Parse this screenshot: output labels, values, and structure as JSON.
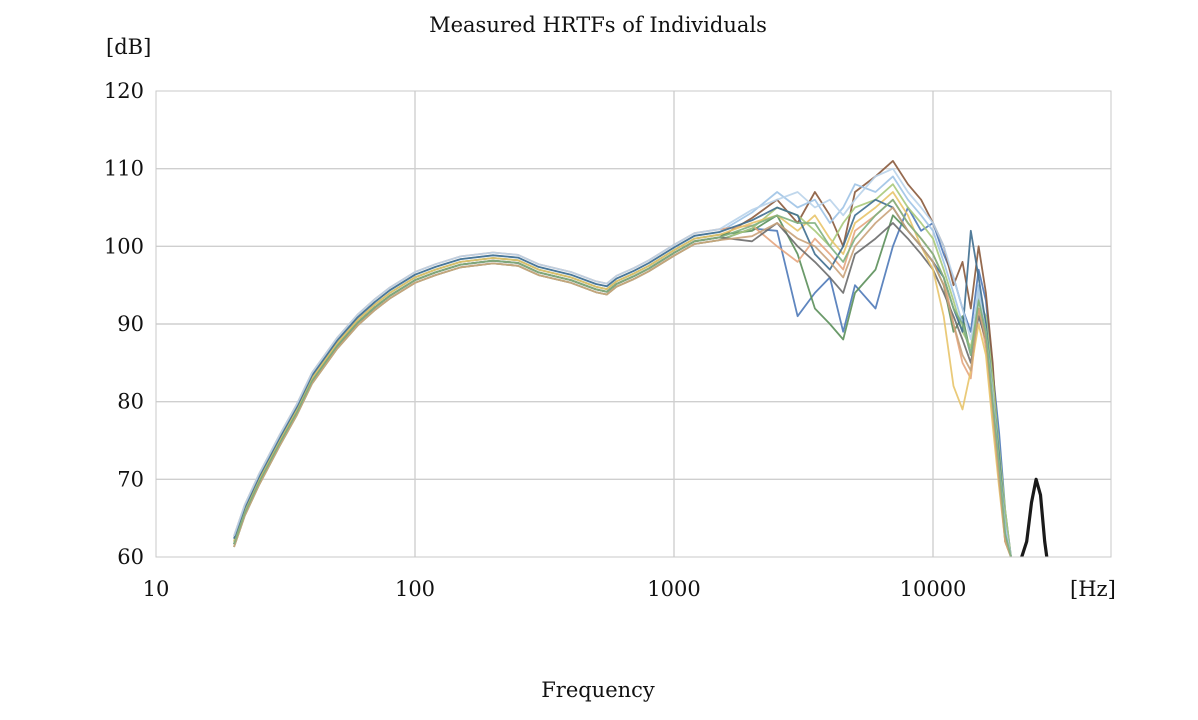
{
  "chart_data": {
    "type": "line",
    "title": "Measured HRTFs of Individuals",
    "ylabel": "[dB]",
    "xunit": "[Hz]",
    "xlabel": "Frequency",
    "x_scale": "log",
    "xlim": [
      10,
      35000
    ],
    "ylim": [
      60,
      120
    ],
    "x_ticks": [
      10,
      100,
      1000,
      10000
    ],
    "x_tick_labels": [
      "10",
      "100",
      "1000",
      "10000"
    ],
    "y_ticks": [
      60,
      70,
      80,
      90,
      100,
      110,
      120
    ],
    "y_tick_labels": [
      "60",
      "70",
      "80",
      "90",
      "100",
      "110",
      "120"
    ],
    "grid": true,
    "legend": "none",
    "base_curve": {
      "x": [
        20,
        22,
        25,
        30,
        35,
        40,
        50,
        60,
        70,
        80,
        100,
        120,
        150,
        200,
        250,
        300,
        400,
        500,
        550,
        600,
        700,
        800,
        1000,
        1200,
        1500,
        2000
      ],
      "y": [
        62,
        66,
        70,
        75,
        79,
        83,
        87.5,
        90.5,
        92.5,
        94,
        96,
        97,
        98,
        98.5,
        98.2,
        97,
        96,
        94.8,
        94.5,
        95.5,
        96.5,
        97.5,
        99.5,
        101,
        101.5,
        103
      ]
    },
    "series": [
      {
        "color": "#4e79b8",
        "x": [
          2000,
          2500,
          3000,
          3500,
          4000,
          4500,
          5000,
          6000,
          7000,
          8000,
          9000,
          10000,
          11000,
          12000,
          13000,
          14000,
          15000,
          16000,
          17000,
          18000,
          19000,
          20000
        ],
        "y": [
          103,
          102,
          91,
          94,
          96,
          89,
          95,
          92,
          100,
          105,
          102,
          103,
          99,
          96,
          92,
          89,
          97,
          93,
          84,
          76,
          66,
          60
        ]
      },
      {
        "color": "#8a5a3c",
        "x": [
          2000,
          2500,
          3000,
          3500,
          4000,
          4500,
          5000,
          6000,
          7000,
          8000,
          9000,
          10000,
          11000,
          12000,
          13000,
          14000,
          15000,
          16000,
          17000,
          18000,
          19000,
          20000
        ],
        "y": [
          104,
          106,
          103,
          107,
          104,
          100,
          107,
          109,
          111,
          108,
          106,
          103,
          100,
          95,
          98,
          92,
          100,
          94,
          85,
          72,
          62,
          60
        ]
      },
      {
        "color": "#5b8f5a",
        "x": [
          2000,
          2500,
          3000,
          3500,
          4000,
          4500,
          5000,
          6000,
          7000,
          8000,
          9000,
          10000,
          11000,
          12000,
          13000,
          14000,
          15000,
          16000,
          17000,
          18000,
          19000,
          20000
        ],
        "y": [
          102,
          104,
          99,
          92,
          90,
          88,
          94,
          97,
          104,
          102,
          100,
          98,
          95,
          89,
          91,
          86,
          94,
          88,
          80,
          71,
          64,
          60
        ]
      },
      {
        "color": "#9ec3e6",
        "x": [
          2000,
          2500,
          3000,
          3500,
          4000,
          4500,
          5000,
          6000,
          7000,
          8000,
          9000,
          10000,
          11000,
          12000,
          13000,
          14000,
          15000,
          16000,
          17000,
          18000,
          19000,
          20000
        ],
        "y": [
          104,
          107,
          105,
          106,
          103,
          105,
          108,
          107,
          109,
          106,
          104,
          102,
          98,
          94,
          90,
          86,
          95,
          90,
          82,
          73,
          65,
          60
        ]
      },
      {
        "color": "#e6a57e",
        "x": [
          2000,
          2500,
          3000,
          3500,
          4000,
          4500,
          5000,
          6000,
          7000,
          8000,
          9000,
          10000,
          11000,
          12000,
          13000,
          14000,
          15000,
          16000,
          17000,
          18000,
          19000,
          20000
        ],
        "y": [
          102,
          100,
          98,
          101,
          99,
          97,
          102,
          104,
          106,
          103,
          101,
          99,
          96,
          90,
          85,
          83,
          92,
          87,
          78,
          70,
          62,
          60
        ]
      },
      {
        "color": "#a9c97a",
        "x": [
          2000,
          2500,
          3000,
          3500,
          4000,
          4500,
          5000,
          6000,
          7000,
          8000,
          9000,
          10000,
          11000,
          12000,
          13000,
          14000,
          15000,
          16000,
          17000,
          18000,
          19000,
          20000
        ],
        "y": [
          103,
          105,
          104,
          102,
          100,
          103,
          105,
          106,
          108,
          105,
          103,
          101,
          97,
          93,
          89,
          87,
          93,
          91,
          83,
          74,
          66,
          60
        ]
      },
      {
        "color": "#6b6b6b",
        "x": [
          2000,
          2500,
          3000,
          3500,
          4000,
          4500,
          5000,
          6000,
          7000,
          8000,
          9000,
          10000,
          11000,
          12000,
          13000,
          14000,
          15000,
          16000,
          17000,
          18000,
          19000,
          20000
        ],
        "y": [
          101,
          103,
          100,
          98,
          96,
          94,
          99,
          101,
          103,
          101,
          99,
          97,
          94,
          91,
          88,
          85,
          91,
          88,
          80,
          72,
          63,
          60
        ]
      },
      {
        "color": "#e8c46a",
        "x": [
          2000,
          2500,
          3000,
          3500,
          4000,
          4500,
          5000,
          6000,
          7000,
          8000,
          9000,
          10000,
          11000,
          12000,
          13000,
          14000,
          15000,
          16000,
          17000,
          18000,
          19000,
          20000
        ],
        "y": [
          103,
          104,
          102,
          104,
          101,
          99,
          103,
          105,
          107,
          104,
          100,
          97,
          91,
          82,
          79,
          84,
          90,
          86,
          77,
          69,
          62,
          60
        ]
      },
      {
        "color": "#3f6e8f",
        "x": [
          2000,
          2500,
          3000,
          3500,
          4000,
          4500,
          5000,
          6000,
          7000,
          8000,
          9000,
          10000,
          11000,
          12000,
          13000,
          14000,
          15000,
          16000,
          17000,
          18000,
          19000,
          20000
        ],
        "y": [
          103,
          105,
          104,
          99,
          97,
          100,
          104,
          106,
          105,
          102,
          100,
          98,
          96,
          92,
          89,
          102,
          96,
          90,
          81,
          73,
          64,
          60
        ]
      },
      {
        "color": "#b9d3ea",
        "x": [
          2000,
          2500,
          3000,
          3500,
          4000,
          4500,
          5000,
          6000,
          7000,
          8000,
          9000,
          10000,
          11000,
          12000,
          13000,
          14000,
          15000,
          16000,
          17000,
          18000,
          19000,
          20000
        ],
        "y": [
          104,
          106,
          107,
          105,
          106,
          104,
          106,
          109,
          110,
          107,
          105,
          103,
          100,
          96,
          92,
          88,
          94,
          89,
          81,
          72,
          64,
          60
        ]
      },
      {
        "color": "#c9a27a",
        "x": [
          2000,
          2500,
          3000,
          3500,
          4000,
          4500,
          5000,
          6000,
          7000,
          8000,
          9000,
          10000,
          11000,
          12000,
          13000,
          14000,
          15000,
          16000,
          17000,
          18000,
          19000,
          20000
        ],
        "y": [
          102,
          103,
          101,
          100,
          98,
          96,
          100,
          103,
          105,
          102,
          100,
          98,
          95,
          90,
          86,
          84,
          92,
          88,
          79,
          70,
          62,
          60
        ]
      },
      {
        "color": "#7fb07e",
        "x": [
          2000,
          2500,
          3000,
          3500,
          4000,
          4500,
          5000,
          6000,
          7000,
          8000,
          9000,
          10000,
          11000,
          12000,
          13000,
          14000,
          15000,
          16000,
          17000,
          18000,
          19000,
          20000
        ],
        "y": [
          103,
          104,
          103,
          103,
          100,
          98,
          101,
          104,
          106,
          103,
          101,
          99,
          96,
          92,
          90,
          86,
          93,
          89,
          80,
          72,
          63,
          60
        ]
      },
      {
        "color": "#1a1a1a",
        "x": [
          22000,
          23000,
          24000,
          25000,
          26000,
          27000,
          27500
        ],
        "y": [
          60,
          62,
          67,
          70,
          68,
          62,
          60
        ]
      }
    ]
  }
}
